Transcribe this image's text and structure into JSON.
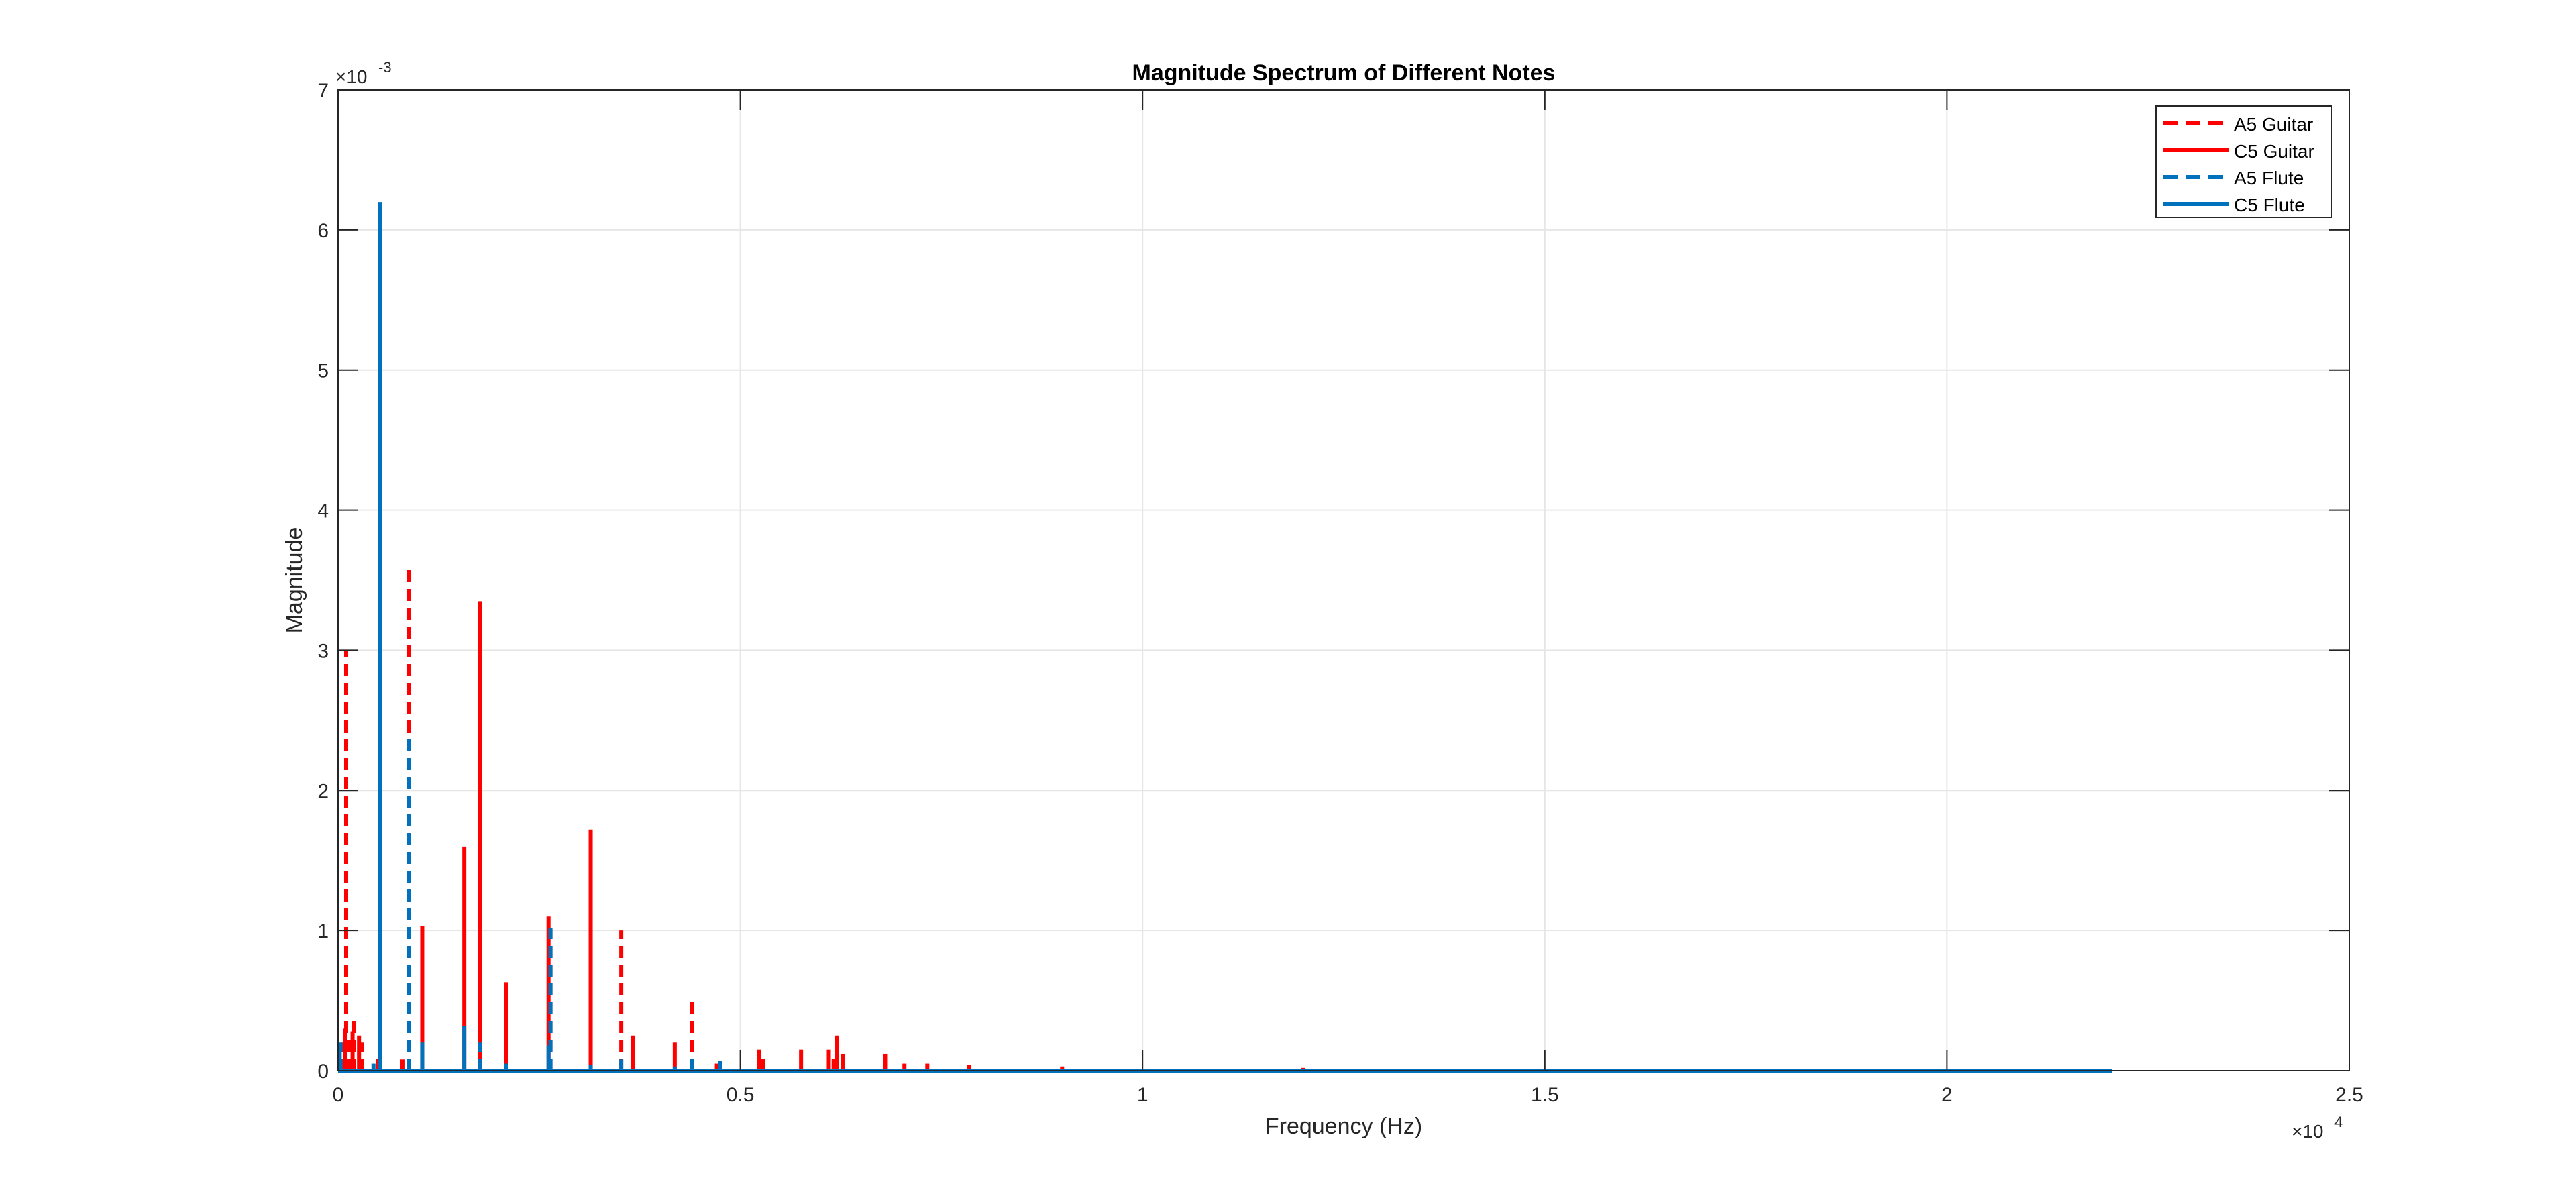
{
  "chart_data": {
    "type": "line",
    "title": "Magnitude Spectrum of Different Notes",
    "xlabel": "Frequency (Hz)",
    "ylabel": "Magnitude",
    "x_exponent_label": "×10",
    "x_exponent_power": "4",
    "y_exponent_label": "×10",
    "y_exponent_power": "-3",
    "xlim": [
      0,
      25000
    ],
    "ylim": [
      0,
      0.007
    ],
    "x_ticks": [
      0,
      5000,
      10000,
      15000,
      20000,
      25000
    ],
    "x_tick_labels": [
      "0",
      "0.5",
      "1",
      "1.5",
      "2",
      "2.5"
    ],
    "y_ticks": [
      0,
      0.001,
      0.002,
      0.003,
      0.004,
      0.005,
      0.006,
      0.007
    ],
    "y_tick_labels": [
      "0",
      "1",
      "2",
      "3",
      "4",
      "5",
      "6",
      "7"
    ],
    "grid": true,
    "legend_position": "top-right",
    "x_end": 22050,
    "series": [
      {
        "name": "A5 Guitar",
        "color": "#ff0000",
        "style": "dashed",
        "peaks": [
          {
            "x": 60,
            "y": 0.0002
          },
          {
            "x": 100,
            "y": 0.003
          },
          {
            "x": 150,
            "y": 0.00025
          },
          {
            "x": 200,
            "y": 0.0004
          },
          {
            "x": 300,
            "y": 0.0002
          },
          {
            "x": 500,
            "y": 0.0001
          },
          {
            "x": 880,
            "y": 0.0036
          },
          {
            "x": 1760,
            "y": 0.0005
          },
          {
            "x": 2640,
            "y": 0.001
          },
          {
            "x": 3520,
            "y": 0.001
          },
          {
            "x": 4400,
            "y": 0.00052
          },
          {
            "x": 5280,
            "y": 0.00012
          },
          {
            "x": 6160,
            "y": 0.00012
          },
          {
            "x": 7040,
            "y": 5e-05
          }
        ]
      },
      {
        "name": "C5 Guitar",
        "color": "#ff0000",
        "style": "solid",
        "peaks": [
          {
            "x": 90,
            "y": 0.0003
          },
          {
            "x": 180,
            "y": 0.00028
          },
          {
            "x": 260,
            "y": 0.00025
          },
          {
            "x": 523,
            "y": 0.00025
          },
          {
            "x": 800,
            "y": 8e-05
          },
          {
            "x": 1046,
            "y": 0.00103
          },
          {
            "x": 1569,
            "y": 0.0016
          },
          {
            "x": 1760,
            "y": 0.00335
          },
          {
            "x": 2093,
            "y": 0.00063
          },
          {
            "x": 2616,
            "y": 0.0011
          },
          {
            "x": 3140,
            "y": 0.00172
          },
          {
            "x": 3662,
            "y": 0.00025
          },
          {
            "x": 4185,
            "y": 0.0002
          },
          {
            "x": 4708,
            "y": 5e-05
          },
          {
            "x": 5231,
            "y": 0.00015
          },
          {
            "x": 5755,
            "y": 0.00015
          },
          {
            "x": 6100,
            "y": 0.00015
          },
          {
            "x": 6200,
            "y": 0.00025
          },
          {
            "x": 6278,
            "y": 0.00012
          },
          {
            "x": 6800,
            "y": 0.00012
          },
          {
            "x": 7324,
            "y": 5e-05
          },
          {
            "x": 7847,
            "y": 4e-05
          },
          {
            "x": 9000,
            "y": 3e-05
          },
          {
            "x": 12000,
            "y": 2e-05
          }
        ]
      },
      {
        "name": "A5 Flute",
        "color": "#0072bd",
        "style": "dashed",
        "peaks": [
          {
            "x": 30,
            "y": 0.0002
          },
          {
            "x": 440,
            "y": 5e-05
          },
          {
            "x": 880,
            "y": 0.0024
          },
          {
            "x": 1760,
            "y": 0.0002
          },
          {
            "x": 2640,
            "y": 0.00102
          },
          {
            "x": 3520,
            "y": 8e-05
          },
          {
            "x": 4400,
            "y": 0.00012
          },
          {
            "x": 4750,
            "y": 7e-05
          }
        ]
      },
      {
        "name": "C5 Flute",
        "color": "#0072bd",
        "style": "solid",
        "peaks": [
          {
            "x": 20,
            "y": 0.00015
          },
          {
            "x": 523,
            "y": 0.0062
          },
          {
            "x": 1046,
            "y": 0.0002
          },
          {
            "x": 1569,
            "y": 0.00032
          },
          {
            "x": 2093,
            "y": 5e-05
          },
          {
            "x": 2616,
            "y": 0.00018
          },
          {
            "x": 3140,
            "y": 4e-05
          },
          {
            "x": 4185,
            "y": 3e-05
          }
        ]
      }
    ]
  }
}
